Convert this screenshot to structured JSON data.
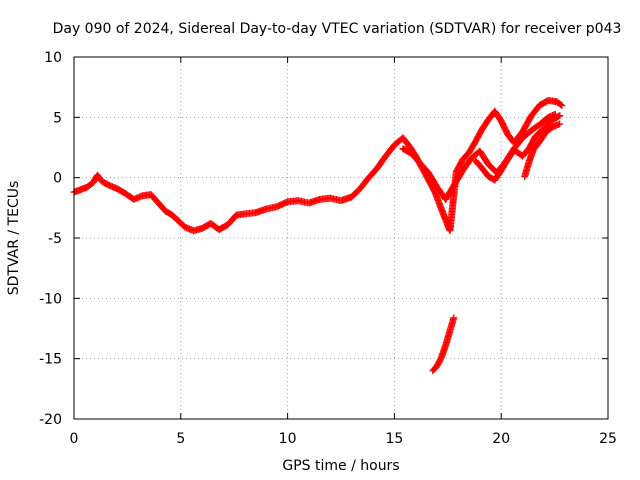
{
  "chart_data": {
    "type": "scatter",
    "title": "Day 090 of 2024, Sidereal Day-to-day VTEC variation (SDTVAR) for receiver p043",
    "xlabel": "GPS time / hours",
    "ylabel": "SDTVAR / TECUs",
    "xlim": [
      0,
      25
    ],
    "ylim": [
      -20,
      10
    ],
    "xticks": [
      "0",
      "5",
      "10",
      "15",
      "20",
      "25"
    ],
    "yticks": [
      "-20",
      "-15",
      "-10",
      "-5",
      "0",
      "5",
      "10"
    ],
    "grid": true,
    "legend": "none",
    "marker": "+",
    "series": [
      {
        "name": "SDTVAR",
        "color": "#ff0000",
        "segments": [
          {
            "x": [
              0.0,
              0.3,
              0.6,
              0.9,
              1.1,
              1.3,
              1.6,
              2.0,
              2.4,
              2.8,
              3.2,
              3.6,
              4.0,
              4.3,
              4.6,
              4.9,
              5.2,
              5.6,
              6.0,
              6.4,
              6.8,
              7.2,
              7.6,
              8.0,
              8.5,
              9.0,
              9.5,
              10.0,
              10.5,
              11.0,
              11.5,
              12.0,
              12.5,
              13.0,
              13.4,
              13.8,
              14.2,
              14.6,
              15.0,
              15.4,
              15.7,
              16.0,
              16.3,
              16.6,
              16.9,
              17.2,
              17.4,
              17.6,
              17.9,
              18.2,
              18.5,
              18.8,
              19.1,
              19.4,
              19.7,
              20.0,
              20.3,
              20.6,
              21.0,
              21.4,
              21.8,
              22.2,
              22.6,
              22.9
            ],
            "y": [
              -1.2,
              -1.0,
              -0.8,
              -0.4,
              0.2,
              -0.3,
              -0.6,
              -0.9,
              -1.3,
              -1.8,
              -1.5,
              -1.4,
              -2.2,
              -2.8,
              -3.1,
              -3.6,
              -4.1,
              -4.4,
              -4.2,
              -3.8,
              -4.3,
              -3.9,
              -3.1,
              -3.0,
              -2.9,
              -2.6,
              -2.4,
              -2.0,
              -1.9,
              -2.1,
              -1.8,
              -1.7,
              -1.9,
              -1.6,
              -0.9,
              0.0,
              0.8,
              1.8,
              2.7,
              3.3,
              2.6,
              1.8,
              0.8,
              -0.2,
              -1.2,
              -2.6,
              -3.5,
              -4.4,
              0.5,
              1.5,
              2.1,
              3.0,
              4.0,
              4.8,
              5.5,
              4.7,
              3.6,
              2.9,
              3.8,
              5.1,
              6.0,
              6.4,
              6.3,
              5.9
            ]
          },
          {
            "x": [
              15.4,
              15.8,
              16.2,
              16.6,
              17.0,
              17.4,
              17.8,
              18.2,
              18.6,
              19.0,
              19.4,
              19.8,
              20.2,
              20.6,
              21.0,
              21.4,
              21.8,
              22.2,
              22.6
            ],
            "y": [
              2.4,
              2.0,
              1.2,
              0.4,
              -0.8,
              -1.8,
              -0.6,
              0.6,
              1.6,
              2.2,
              1.1,
              0.4,
              1.3,
              2.4,
              3.3,
              3.9,
              4.4,
              5.0,
              5.3
            ]
          },
          {
            "x": [
              18.8,
              19.1,
              19.4,
              19.7,
              20.0,
              20.3,
              20.6,
              21.0,
              21.3,
              21.6,
              22.0,
              22.4,
              22.8
            ],
            "y": [
              1.4,
              0.8,
              0.1,
              -0.2,
              0.6,
              1.5,
              2.3,
              1.8,
              2.4,
              3.4,
              4.1,
              4.8,
              5.2
            ]
          },
          {
            "x": [
              21.1,
              21.3,
              21.5,
              21.8,
              22.1,
              22.4,
              22.8
            ],
            "y": [
              0.1,
              1.3,
              2.3,
              3.0,
              3.8,
              4.2,
              4.5
            ]
          },
          {
            "x": [
              16.8,
              17.0,
              17.2,
              17.4,
              17.6,
              17.8
            ],
            "y": [
              -16.0,
              -15.6,
              -14.9,
              -13.9,
              -12.7,
              -11.5
            ]
          }
        ]
      }
    ]
  }
}
